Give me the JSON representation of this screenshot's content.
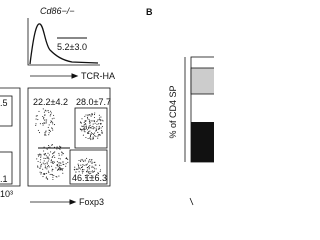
{
  "panel_a": {
    "genotype": "Cd86−/−",
    "histogram_gate": "5.2±3.0",
    "histogram_x_label": "TCR-HA",
    "left_plot": {
      "top": ".5",
      "bottom": ".1",
      "axis_tick": "10³"
    },
    "right_plot": {
      "top_left": "22.2±4.2",
      "top_right": "28.0±7.7",
      "bottom_right": "46.1±6.3"
    },
    "flow_x_label": "Foxp3"
  },
  "panel_b": {
    "label": "B",
    "y_label": "% of CD4 SP"
  }
}
